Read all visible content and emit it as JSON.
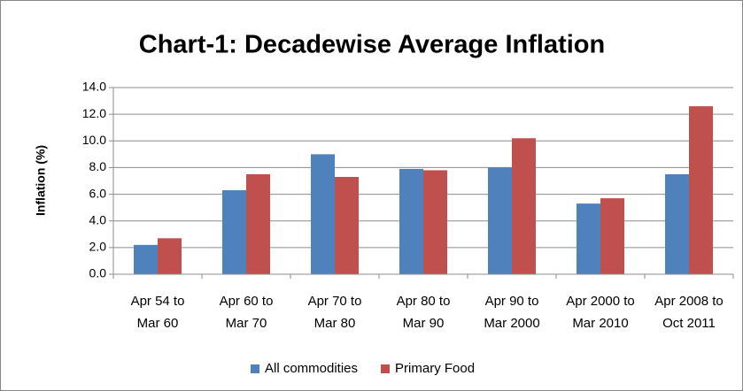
{
  "chart_data": {
    "type": "bar",
    "title": "Chart-1: Decadewise Average Inflation",
    "y_label": "Inflation (%)",
    "categories": [
      "Apr 54 to\nMar 60",
      "Apr 60 to\nMar 70",
      "Apr 70 to\nMar 80",
      "Apr 80 to\nMar 90",
      "Apr 90 to\nMar 2000",
      "Apr 2000 to\nMar 2010",
      "Apr 2008 to\nOct 2011"
    ],
    "series": [
      {
        "name": "All commodities",
        "color": "#4f81bd",
        "values": [
          2.2,
          6.3,
          9.0,
          7.9,
          8.0,
          5.3,
          7.5
        ]
      },
      {
        "name": "Primary Food",
        "color": "#c0504d",
        "values": [
          2.7,
          7.5,
          7.3,
          7.8,
          10.2,
          5.7,
          12.6
        ]
      }
    ],
    "ylim": [
      0,
      14
    ],
    "yticks": [
      {
        "value": 0,
        "label": "0.0"
      },
      {
        "value": 2,
        "label": "2.0"
      },
      {
        "value": 4,
        "label": "4.0"
      },
      {
        "value": 6,
        "label": "6.0"
      },
      {
        "value": 8,
        "label": "8.0"
      },
      {
        "value": 10,
        "label": "10.0"
      },
      {
        "value": 12,
        "label": "12.0"
      },
      {
        "value": 14,
        "label": "14.0"
      }
    ],
    "grid": true,
    "legend": "bottom"
  }
}
